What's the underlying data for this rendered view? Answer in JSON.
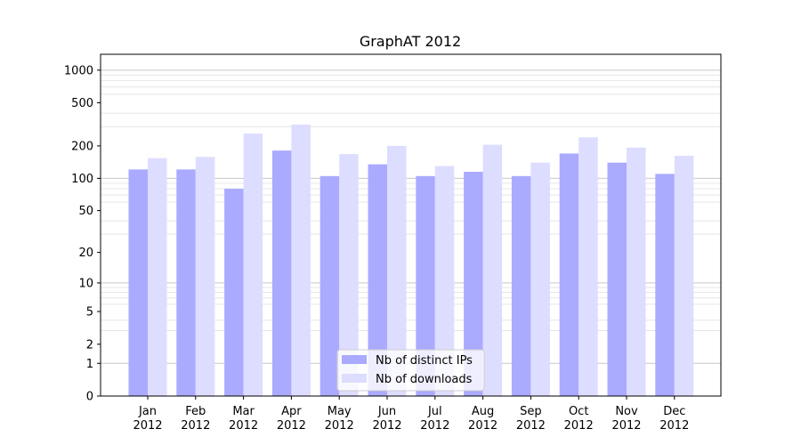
{
  "chart_data": {
    "type": "bar",
    "title": "GraphAT 2012",
    "xlabel": "",
    "ylabel": "",
    "scale": "log",
    "categories": [
      "Jan\n2012",
      "Feb\n2012",
      "Mar\n2012",
      "Apr\n2012",
      "May\n2012",
      "Jun\n2012",
      "Jul\n2012",
      "Aug\n2012",
      "Sep\n2012",
      "Oct\n2012",
      "Nov\n2012",
      "Dec\n2012"
    ],
    "series": [
      {
        "name": "Nb of distinct IPs",
        "color": "#aaaaff",
        "values": [
          121,
          121,
          80,
          181,
          105,
          135,
          105,
          115,
          105,
          170,
          140,
          110
        ]
      },
      {
        "name": "Nb of downloads",
        "color": "#ddddff",
        "values": [
          154,
          158,
          260,
          315,
          168,
          200,
          130,
          205,
          140,
          240,
          193,
          162
        ]
      }
    ],
    "yticks": [
      0,
      1,
      2,
      5,
      10,
      20,
      50,
      100,
      200,
      500,
      1000
    ],
    "ylim": [
      0,
      1400
    ],
    "grid": true,
    "legend": "bottom-center"
  }
}
